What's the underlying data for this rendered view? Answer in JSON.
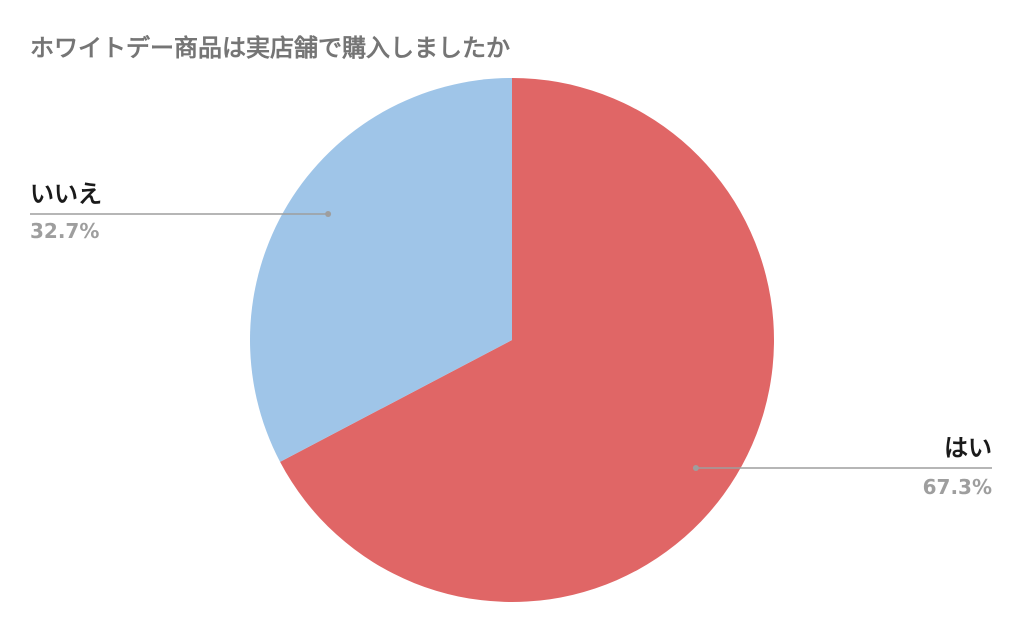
{
  "chart_data": {
    "type": "pie",
    "title": "ホワイトデー商品は実店舗で購入しましたか",
    "slices": [
      {
        "label": "はい",
        "value": 67.3,
        "value_label": "67.3%",
        "color": "#e06666"
      },
      {
        "label": "いいえ",
        "value": 32.7,
        "value_label": "32.7%",
        "color": "#9fc5e8"
      }
    ],
    "start_angle": "12 o'clock",
    "direction": "clockwise",
    "legend": "none",
    "leader_line_color": "#9e9e9e"
  }
}
